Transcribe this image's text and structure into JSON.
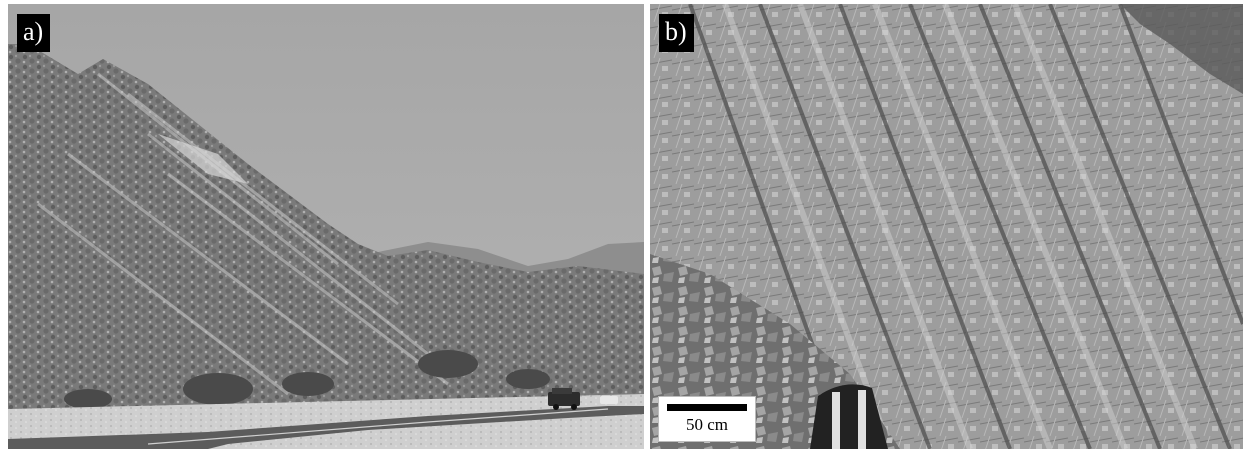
{
  "figure": {
    "panels": [
      {
        "label": "a)",
        "content": "hillside-road-photo"
      },
      {
        "label": "b)",
        "content": "rock-outcrop-photo"
      }
    ],
    "scale_bar": {
      "text": "50 cm"
    },
    "colors": {
      "sky": "#a9a9a9",
      "slope": "#7d7d7d",
      "road": "#5a5a5a",
      "rock": "#9c9c9c",
      "label_bg": "#000000",
      "label_fg": "#ffffff"
    }
  }
}
